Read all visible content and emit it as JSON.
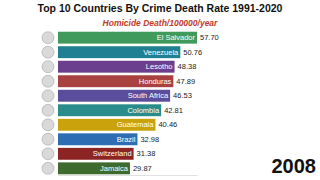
{
  "chart_data": {
    "type": "bar",
    "orientation": "horizontal",
    "title": "Top 10 Countries By Crime Death Rate 1991-2020",
    "subtitle": "Homicide Death/100000/year",
    "annotations": [
      "2008"
    ],
    "categories": [
      "El Salvador",
      "Venezuela",
      "Lesotho",
      "Honduras",
      "South Africa",
      "Colombia",
      "Guatemala",
      "Brazil",
      "Switzerland",
      "Jamaica"
    ],
    "values": [
      57.7,
      50.76,
      48.38,
      47.89,
      46.53,
      42.81,
      40.46,
      32.98,
      31.38,
      29.87
    ],
    "value_labels": [
      "57.70",
      "50.76",
      "48.38",
      "47.89",
      "46.53",
      "42.81",
      "40.46",
      "32.98",
      "31.38",
      "29.87"
    ],
    "colors": [
      "#3f9a5c",
      "#1f7f93",
      "#6b3f8e",
      "#a8413f",
      "#5a4d9c",
      "#2a8c8a",
      "#c9a20c",
      "#2f6db3",
      "#8c2424",
      "#3d6b2e"
    ],
    "xlim": [
      0,
      57.7
    ],
    "data_labels": true,
    "tick_labels": false,
    "grid": false
  }
}
